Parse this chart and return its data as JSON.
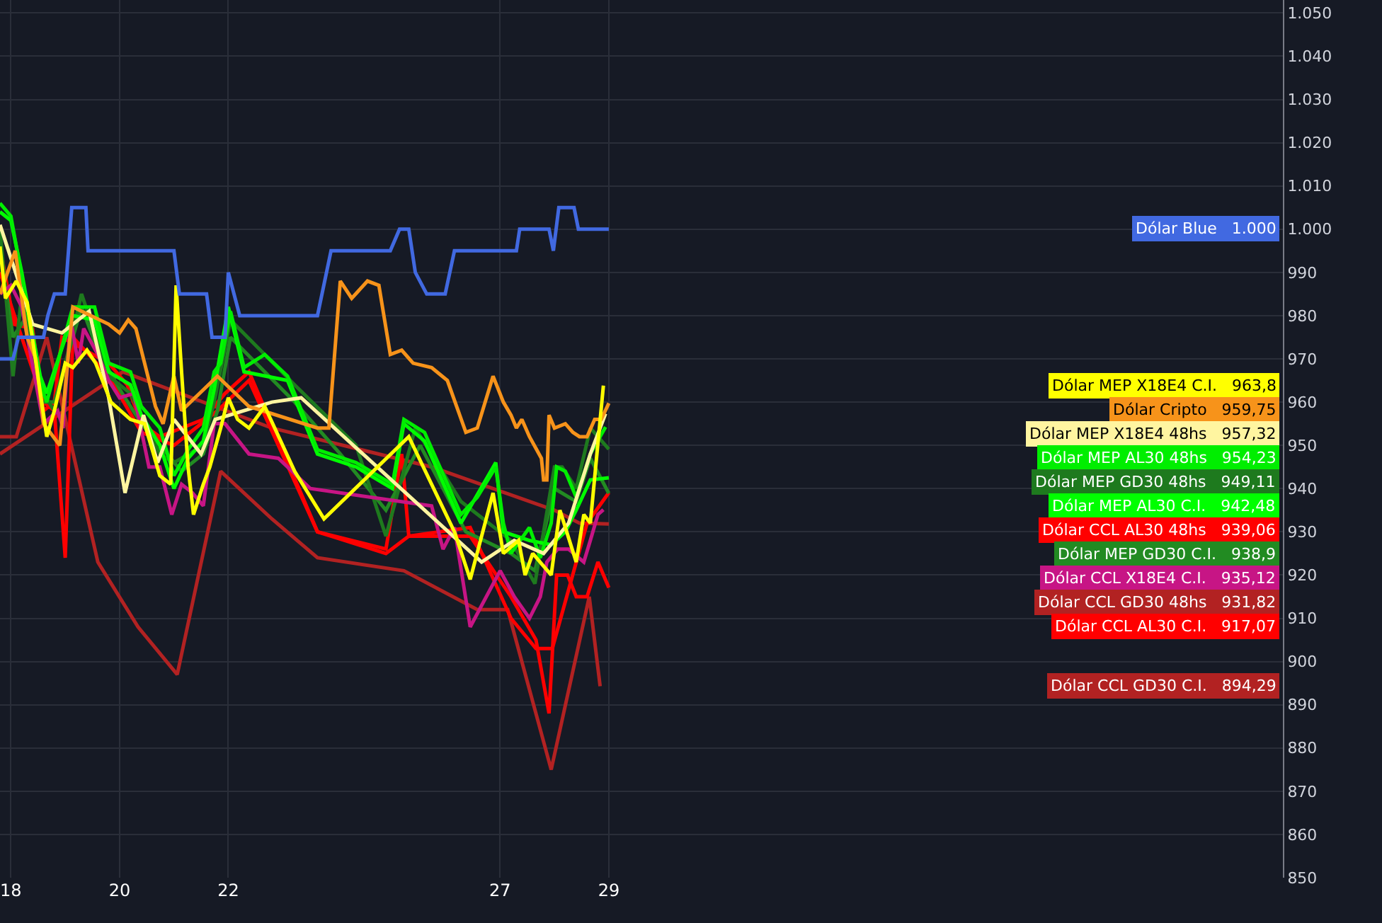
{
  "chart_data": {
    "type": "line",
    "xlim": [
      17.8,
      41.4
    ],
    "ylim": [
      850,
      1053
    ],
    "xticks": [
      18,
      20,
      22,
      27,
      29
    ],
    "yticks": [
      850,
      860,
      870,
      880,
      890,
      900,
      910,
      920,
      930,
      940,
      950,
      960,
      970,
      980,
      990,
      {
        "value": 1000,
        "label": "1.000"
      },
      {
        "value": 1010,
        "label": "1.010"
      },
      {
        "value": 1020,
        "label": "1.020"
      },
      {
        "value": 1030,
        "label": "1.030"
      },
      {
        "value": 1040,
        "label": "1.040"
      },
      {
        "value": 1050,
        "label": "1.050"
      }
    ],
    "grid": true,
    "legend": false,
    "marker": "none",
    "line_style": "solid",
    "series": [
      {
        "name": "Dólar CCL GD30 C.I.",
        "color": "#b22222",
        "x": [
          17.8,
          18.1,
          18.66,
          19.6,
          20.34,
          21.06,
          21.86,
          22.8,
          23.64,
          25.23,
          26.58,
          27.14,
          27.94,
          28.64,
          28.84
        ],
        "values": [
          952,
          952,
          975,
          923,
          908,
          897,
          944,
          933,
          924,
          921,
          912,
          912,
          875,
          915,
          894.29
        ],
        "value_labels": [
          null,
          null,
          null,
          null,
          null,
          null,
          null,
          null,
          null,
          null,
          null,
          null,
          null,
          null,
          "894,29"
        ]
      },
      {
        "name": "Dólar CCL GD30 48hs",
        "color": "#b22222",
        "x": [
          17.8,
          20.06,
          22.8,
          25.74,
          28.0,
          28.46,
          29.0
        ],
        "values": [
          948,
          967,
          954,
          945,
          935,
          932,
          931.82
        ],
        "value_labels": [
          null,
          null,
          null,
          null,
          null,
          null,
          "931,82"
        ]
      },
      {
        "name": "Dólar CCL AL30 C.I.",
        "color": "#ff0000",
        "x": [
          17.8,
          18.2,
          18.6,
          18.8,
          19.0,
          19.14,
          19.8,
          20.4,
          21.0,
          21.8,
          22.38,
          23.64,
          24.9,
          25.32,
          26.45,
          27.2,
          27.66,
          27.9,
          28.04,
          28.24,
          28.4,
          28.6,
          28.8,
          29.0
        ],
        "values": [
          990,
          975,
          960,
          958,
          924,
          975,
          966,
          953,
          950,
          958,
          965,
          930,
          925,
          929,
          929,
          915,
          905,
          888,
          920,
          920,
          915,
          915,
          923,
          917.07
        ],
        "value_labels": [
          null,
          null,
          null,
          null,
          null,
          null,
          null,
          null,
          null,
          null,
          null,
          null,
          null,
          null,
          null,
          null,
          null,
          null,
          null,
          null,
          null,
          null,
          null,
          "917,07"
        ]
      },
      {
        "name": "Dólar CCL AL30 48hs",
        "color": "#ff0000",
        "x": [
          17.8,
          18.06,
          18.4,
          18.6,
          18.8,
          18.94,
          19.8,
          20.14,
          20.4,
          20.74,
          21.14,
          21.54,
          21.94,
          22.38,
          23.64,
          24.9,
          25.19,
          25.32,
          26.45,
          27.2,
          27.66,
          27.96,
          28.6,
          29.0
        ],
        "values": [
          996,
          978,
          977,
          958,
          960,
          975,
          969,
          964,
          955,
          952,
          954,
          956,
          962,
          967,
          930,
          926,
          948,
          929,
          931,
          910,
          903,
          903,
          932,
          939.06
        ],
        "value_labels": [
          null,
          null,
          null,
          null,
          null,
          null,
          null,
          null,
          null,
          null,
          null,
          null,
          null,
          null,
          null,
          null,
          null,
          null,
          null,
          null,
          null,
          null,
          null,
          "939,06"
        ]
      },
      {
        "name": "Dólar MEP GD30 C.I.",
        "color": "#228b22",
        "x": [
          17.8,
          18.04,
          18.3,
          18.54,
          18.8,
          19.3,
          19.6,
          20.0,
          20.4,
          20.74,
          21.14,
          21.54,
          21.8,
          22.04,
          23.22,
          24.06,
          24.9,
          25.53,
          26.37,
          27.2,
          27.64,
          28.0,
          28.4,
          28.66,
          29.0
        ],
        "values": [
          995,
          975,
          980,
          960,
          960,
          982,
          972,
          963,
          955,
          950,
          944,
          948,
          958,
          975,
          960,
          948,
          935,
          950,
          930,
          925,
          921,
          940,
          937,
          947,
          938.9
        ],
        "value_labels": [
          null,
          null,
          null,
          null,
          null,
          null,
          null,
          null,
          null,
          null,
          null,
          null,
          null,
          null,
          null,
          null,
          null,
          null,
          null,
          null,
          null,
          null,
          null,
          null,
          "938,9"
        ]
      },
      {
        "name": "Dólar MEP GD30 48hs",
        "color": "#1e7a1e",
        "x": [
          17.8,
          18.04,
          18.2,
          18.54,
          18.8,
          19.3,
          19.54,
          19.8,
          20.2,
          20.74,
          21.0,
          21.54,
          21.74,
          22.04,
          23.22,
          24.35,
          24.9,
          25.44,
          26.28,
          27.2,
          27.64,
          28.0,
          28.14,
          28.4,
          28.66,
          29.0
        ],
        "values": [
          1000,
          966,
          985,
          963,
          958,
          985,
          976,
          966,
          962,
          948,
          946,
          950,
          960,
          979,
          964,
          950,
          929,
          954,
          937,
          928,
          918,
          945,
          945,
          940,
          954,
          949.11
        ],
        "value_labels": [
          null,
          null,
          null,
          null,
          null,
          null,
          null,
          null,
          null,
          null,
          null,
          null,
          null,
          null,
          null,
          null,
          null,
          null,
          null,
          null,
          null,
          null,
          null,
          null,
          null,
          "949,11"
        ]
      },
      {
        "name": "Dólar CCL X18E4 C.I.",
        "color": "#c71585",
        "x": [
          17.8,
          18.0,
          18.2,
          18.6,
          18.86,
          18.96,
          19.1,
          19.24,
          19.34,
          19.6,
          19.8,
          20.0,
          20.26,
          20.54,
          20.74,
          20.96,
          21.14,
          21.34,
          21.54,
          21.74,
          21.94,
          22.38,
          22.92,
          23.51,
          25.74,
          25.95,
          26.16,
          26.45,
          27.0,
          27.26,
          27.54,
          27.74,
          27.86,
          28.06,
          28.26,
          28.54,
          28.66,
          28.8,
          28.9
        ],
        "values": [
          985,
          987,
          982,
          955,
          958,
          954,
          979,
          969,
          977,
          971,
          965,
          961,
          962,
          945,
          945,
          934,
          941,
          939,
          936,
          955,
          955,
          948,
          947,
          940,
          936,
          926,
          931,
          908,
          921,
          915,
          910,
          915,
          923,
          926,
          926,
          923,
          928,
          934,
          935.12
        ],
        "value_labels": [
          null,
          null,
          null,
          null,
          null,
          null,
          null,
          null,
          null,
          null,
          null,
          null,
          null,
          null,
          null,
          null,
          null,
          null,
          null,
          null,
          null,
          null,
          null,
          null,
          null,
          null,
          null,
          null,
          null,
          null,
          null,
          null,
          null,
          null,
          null,
          null,
          null,
          null,
          "935,12"
        ]
      },
      {
        "name": "Dólar MEP AL30 C.I.",
        "color": "#00ff00",
        "x": [
          17.8,
          18.0,
          18.2,
          18.54,
          18.66,
          19.14,
          19.54,
          19.8,
          20.2,
          20.4,
          20.74,
          21.0,
          21.26,
          21.54,
          21.74,
          22.0,
          22.29,
          23.09,
          23.64,
          24.35,
          25.02,
          25.23,
          25.61,
          26.28,
          26.92,
          27.06,
          27.54,
          27.94,
          28.2,
          28.4,
          28.66,
          29.0
        ],
        "values": [
          1004,
          1002,
          990,
          966,
          962,
          980,
          979,
          967,
          964,
          957,
          950,
          940,
          947,
          951,
          963,
          982,
          967,
          965,
          948,
          945,
          940,
          955,
          951,
          932,
          946,
          930,
          928,
          927,
          930,
          935,
          942,
          942.48
        ],
        "value_labels": [
          null,
          null,
          null,
          null,
          null,
          null,
          null,
          null,
          null,
          null,
          null,
          null,
          null,
          null,
          null,
          null,
          null,
          null,
          null,
          null,
          null,
          null,
          null,
          null,
          null,
          null,
          null,
          null,
          null,
          null,
          null,
          "942,48"
        ]
      },
      {
        "name": "Dólar MEP AL30 48hs",
        "color": "#00ee00",
        "x": [
          17.8,
          18.0,
          18.2,
          18.54,
          18.66,
          19.14,
          19.54,
          19.8,
          20.2,
          20.4,
          20.74,
          21.0,
          21.26,
          21.54,
          21.74,
          21.86,
          22.04,
          22.29,
          22.67,
          23.09,
          23.64,
          24.35,
          25.02,
          25.23,
          25.61,
          26.28,
          26.58,
          26.92,
          27.06,
          27.2,
          27.54,
          27.74,
          27.94,
          28.04,
          28.2,
          28.4,
          28.66,
          28.94
        ],
        "values": [
          1006,
          1003,
          989,
          964,
          960,
          982,
          982,
          969,
          967,
          959,
          954,
          943,
          949,
          954,
          967,
          969,
          981,
          968,
          971,
          966,
          949,
          946,
          941,
          956,
          953,
          934,
          938,
          945,
          932,
          925,
          931,
          924,
          932,
          945,
          944,
          938,
          948,
          954.23
        ],
        "value_labels": [
          null,
          null,
          null,
          null,
          null,
          null,
          null,
          null,
          null,
          null,
          null,
          null,
          null,
          null,
          null,
          null,
          null,
          null,
          null,
          null,
          null,
          null,
          null,
          null,
          null,
          null,
          null,
          null,
          null,
          null,
          null,
          null,
          null,
          null,
          null,
          null,
          null,
          "954,23"
        ]
      },
      {
        "name": "Dólar MEP X18E4 48hs",
        "color": "#fff5a0",
        "x": [
          17.8,
          18.4,
          18.94,
          19.44,
          19.8,
          20.1,
          20.44,
          20.7,
          21.0,
          21.5,
          21.76,
          22.8,
          23.34,
          26.66,
          27.26,
          27.8,
          28.26,
          28.66,
          28.94
        ],
        "values": [
          1001,
          978,
          976,
          981,
          961,
          939,
          957,
          946,
          956,
          948,
          956,
          960,
          961,
          923,
          928,
          925,
          932,
          948,
          957.32
        ],
        "value_labels": [
          null,
          null,
          null,
          null,
          null,
          null,
          null,
          null,
          null,
          null,
          null,
          null,
          null,
          null,
          null,
          null,
          null,
          null,
          "957,32"
        ]
      },
      {
        "name": "Dólar Cripto",
        "color": "#f7931a",
        "x": [
          17.8,
          18.08,
          18.3,
          18.46,
          18.6,
          18.9,
          19.14,
          19.8,
          20.0,
          20.16,
          20.3,
          20.66,
          20.8,
          21.0,
          21.14,
          21.8,
          22.38,
          23.64,
          23.85,
          24.06,
          24.27,
          24.56,
          24.77,
          24.98,
          25.19,
          25.4,
          25.74,
          26.03,
          26.37,
          26.58,
          26.87,
          27.06,
          27.2,
          27.3,
          27.4,
          27.54,
          27.76,
          27.8,
          27.86,
          27.9,
          28.0,
          28.2,
          28.34,
          28.46,
          28.6,
          28.74,
          28.86,
          29.0
        ],
        "values": [
          985,
          995,
          975,
          970,
          955,
          950,
          982,
          978,
          976,
          979,
          977,
          959,
          955,
          966,
          958,
          966,
          959,
          954,
          954,
          988,
          984,
          988,
          987,
          971,
          972,
          969,
          968,
          965,
          953,
          954,
          966,
          960,
          957,
          954,
          956,
          952,
          947,
          942,
          942,
          957,
          954,
          955,
          953,
          952,
          952,
          956,
          956,
          959.75
        ],
        "value_labels": [
          null,
          null,
          null,
          null,
          null,
          null,
          null,
          null,
          null,
          null,
          null,
          null,
          null,
          null,
          null,
          null,
          null,
          null,
          null,
          null,
          null,
          null,
          null,
          null,
          null,
          null,
          null,
          null,
          null,
          null,
          null,
          null,
          null,
          null,
          null,
          null,
          null,
          null,
          null,
          null,
          null,
          null,
          null,
          null,
          null,
          null,
          null,
          "959,75"
        ]
      },
      {
        "name": "Dólar MEP X18E4 C.I.",
        "color": "#ffff00",
        "x": [
          17.8,
          17.9,
          18.1,
          18.3,
          18.66,
          18.8,
          19.0,
          19.14,
          19.4,
          19.56,
          19.84,
          20.2,
          20.46,
          20.74,
          20.94,
          21.04,
          21.14,
          21.26,
          21.36,
          21.54,
          21.66,
          21.86,
          22.0,
          22.17,
          22.38,
          22.67,
          23.22,
          23.76,
          25.32,
          26.16,
          26.45,
          26.87,
          27.06,
          27.34,
          27.46,
          27.6,
          27.94,
          28.1,
          28.4,
          28.54,
          28.66,
          28.9
        ],
        "values": [
          996,
          984,
          988,
          983,
          952,
          958,
          969,
          968,
          972,
          969,
          960,
          956,
          955,
          943,
          941,
          987,
          967,
          945,
          934,
          941,
          945,
          954,
          961,
          956,
          954,
          959,
          944,
          933,
          952,
          930,
          919,
          939,
          925,
          928,
          920,
          925,
          920,
          935,
          923,
          934,
          932,
          963.8
        ],
        "value_labels": [
          null,
          null,
          null,
          null,
          null,
          null,
          null,
          null,
          null,
          null,
          null,
          null,
          null,
          null,
          null,
          null,
          null,
          null,
          null,
          null,
          null,
          null,
          null,
          null,
          null,
          null,
          null,
          null,
          null,
          null,
          null,
          null,
          null,
          null,
          null,
          null,
          null,
          null,
          null,
          null,
          null,
          "963,8"
        ]
      },
      {
        "name": "Dólar Blue",
        "color": "#4169e1",
        "x": [
          17.8,
          18.04,
          18.14,
          18.6,
          18.68,
          18.8,
          19.0,
          19.06,
          19.12,
          19.38,
          19.42,
          21.0,
          21.1,
          21.6,
          21.7,
          21.94,
          22.0,
          22.21,
          23.64,
          23.89,
          24.98,
          25.15,
          25.32,
          25.44,
          25.65,
          25.99,
          26.16,
          27.3,
          27.36,
          27.9,
          27.98,
          28.08,
          28.36,
          28.44,
          29.0
        ],
        "values": [
          970,
          970,
          975,
          975,
          980,
          985,
          985,
          995,
          1005,
          1005,
          995,
          995,
          985,
          985,
          975,
          975,
          990,
          980,
          980,
          995,
          995,
          1000,
          1000,
          990,
          985,
          985,
          995,
          995,
          1000,
          1000,
          995,
          1005,
          1005,
          1000,
          1000
        ],
        "value_labels": [
          null,
          null,
          null,
          null,
          null,
          null,
          null,
          null,
          null,
          null,
          null,
          null,
          null,
          null,
          null,
          null,
          null,
          null,
          null,
          null,
          null,
          null,
          null,
          null,
          null,
          null,
          null,
          null,
          null,
          null,
          null,
          null,
          null,
          null,
          "1.000"
        ]
      }
    ]
  }
}
